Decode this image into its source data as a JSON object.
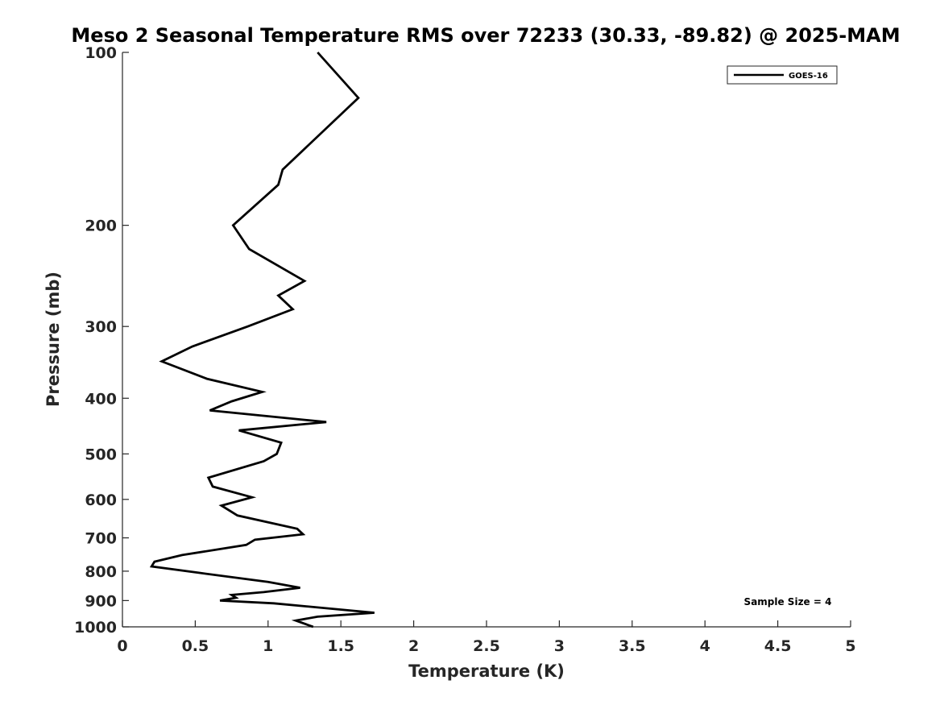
{
  "chart_data": {
    "type": "line",
    "title": "Meso 2 Seasonal Temperature RMS over 72233 (30.33, -89.82) @ 2025-MAM",
    "xlabel": "Temperature (K)",
    "ylabel": "Pressure (mb)",
    "xlim": [
      0,
      5
    ],
    "ylim": [
      100,
      1000
    ],
    "y_scale": "log",
    "y_reversed": true,
    "grid": false,
    "x_ticks": [
      0,
      0.5,
      1,
      1.5,
      2,
      2.5,
      3,
      3.5,
      4,
      4.5,
      5
    ],
    "x_tick_labels": [
      "0",
      "0.5",
      "1",
      "1.5",
      "2",
      "2.5",
      "3",
      "3.5",
      "4",
      "4.5",
      "5"
    ],
    "y_ticks": [
      100,
      200,
      300,
      400,
      500,
      600,
      700,
      800,
      900,
      1000
    ],
    "y_tick_labels": [
      "100",
      "200",
      "300",
      "400",
      "500",
      "600",
      "700",
      "800",
      "900",
      "1000"
    ],
    "legend": {
      "placement": "top-right",
      "entries": [
        "GOES-16"
      ]
    },
    "annotation": "Sample Size = 4",
    "series": [
      {
        "name": "GOES-16",
        "color": "#000000",
        "x": [
          1.34,
          1.62,
          1.1,
          1.07,
          0.76,
          0.87,
          1.25,
          1.07,
          1.17,
          0.86,
          0.48,
          0.27,
          0.58,
          0.96,
          0.75,
          0.6,
          1.4,
          0.8,
          1.09,
          1.06,
          0.97,
          0.59,
          0.62,
          0.89,
          0.68,
          0.79,
          1.2,
          1.24,
          0.91,
          0.85,
          0.41,
          0.22,
          0.2,
          0.52,
          1.0,
          1.22,
          0.97,
          0.75,
          0.78,
          0.67,
          1.04,
          1.73,
          1.34,
          1.19,
          1.31
        ],
        "y": [
          100,
          120,
          160,
          170,
          200,
          220,
          250,
          265,
          280,
          300,
          325,
          345,
          370,
          390,
          405,
          420,
          440,
          455,
          478,
          500,
          515,
          550,
          570,
          595,
          615,
          640,
          675,
          690,
          705,
          720,
          750,
          770,
          785,
          805,
          835,
          855,
          870,
          880,
          890,
          900,
          910,
          945,
          960,
          975,
          1000
        ]
      }
    ]
  }
}
